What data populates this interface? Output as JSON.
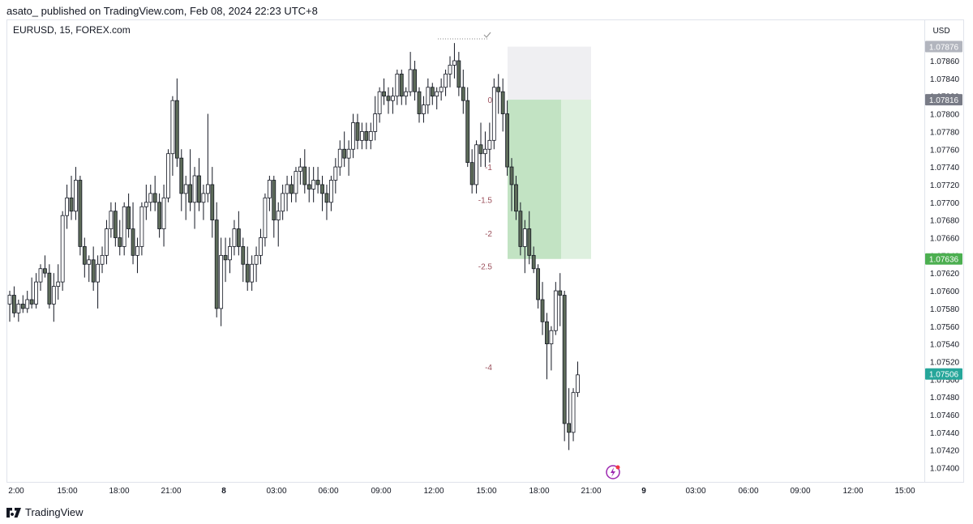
{
  "header": {
    "publish_line": "asato_ published on TradingView.com, Feb 08, 2024 22:23 UTC+8",
    "symbol": "EURUSD, 15, FOREX.com"
  },
  "footer": {
    "brand": "TradingView"
  },
  "chart_data": {
    "type": "candlestick",
    "currency": "USD",
    "ylim": [
      1.0739,
      1.0789
    ],
    "y_ticks": [
      "1.07860",
      "1.07840",
      "1.07820",
      "1.07800",
      "1.07780",
      "1.07760",
      "1.07740",
      "1.07720",
      "1.07700",
      "1.07680",
      "1.07660",
      "1.07640",
      "1.07620",
      "1.07600",
      "1.07580",
      "1.07560",
      "1.07540",
      "1.07520",
      "1.07500",
      "1.07480",
      "1.07460",
      "1.07440",
      "1.07420",
      "1.07400"
    ],
    "x_ticks": [
      "2:00",
      "15:00",
      "18:00",
      "21:00",
      "8",
      "03:00",
      "06:00",
      "09:00",
      "12:00",
      "15:00",
      "18:00",
      "21:00",
      "9",
      "03:00",
      "06:00",
      "09:00",
      "12:00",
      "15:00"
    ],
    "bold_x_ticks": [
      "8",
      "9"
    ],
    "price_badges": [
      {
        "label": "1.07876",
        "value": 1.07876,
        "color": "#b2b5be"
      },
      {
        "label": "1.07816",
        "value": 1.07816,
        "color": "#787b86"
      },
      {
        "label": "1.07636",
        "value": 1.07636,
        "color": "#4caf50"
      },
      {
        "label": "1.07506",
        "value": 1.07506,
        "color": "#26a69a"
      }
    ],
    "level_labels": [
      {
        "label": "0",
        "value": 1.07816
      },
      {
        "label": "-1",
        "value": 1.0774
      },
      {
        "label": "-1.5",
        "value": 1.07703
      },
      {
        "label": "-2",
        "value": 1.07665
      },
      {
        "label": "-2.5",
        "value": 1.07628
      },
      {
        "label": "-4",
        "value": 1.07514
      }
    ],
    "position_box": {
      "entry": 1.07816,
      "stop": 1.07876,
      "target": 1.07636,
      "stop_color": "#e5e5ea",
      "target_color": "#c8e6c9",
      "filled_color": "#a5d6a7"
    },
    "candle_colors": {
      "up": "#ffffff",
      "down": "#5d6b59",
      "border": "#131722"
    },
    "candles": [
      {
        "o": 1.07585,
        "h": 1.076,
        "l": 1.07565,
        "c": 1.07595
      },
      {
        "o": 1.07595,
        "h": 1.07605,
        "l": 1.0757,
        "c": 1.07575
      },
      {
        "o": 1.07575,
        "h": 1.0759,
        "l": 1.07565,
        "c": 1.07585
      },
      {
        "o": 1.07585,
        "h": 1.07595,
        "l": 1.07575,
        "c": 1.0758
      },
      {
        "o": 1.0758,
        "h": 1.076,
        "l": 1.07575,
        "c": 1.0759
      },
      {
        "o": 1.0759,
        "h": 1.07615,
        "l": 1.0758,
        "c": 1.07585
      },
      {
        "o": 1.07585,
        "h": 1.0762,
        "l": 1.0758,
        "c": 1.0761
      },
      {
        "o": 1.0761,
        "h": 1.0763,
        "l": 1.076,
        "c": 1.07625
      },
      {
        "o": 1.07625,
        "h": 1.0764,
        "l": 1.07615,
        "c": 1.0762
      },
      {
        "o": 1.0762,
        "h": 1.0763,
        "l": 1.0758,
        "c": 1.07585
      },
      {
        "o": 1.07585,
        "h": 1.0762,
        "l": 1.07565,
        "c": 1.07605
      },
      {
        "o": 1.07605,
        "h": 1.0763,
        "l": 1.0759,
        "c": 1.0761
      },
      {
        "o": 1.0761,
        "h": 1.0769,
        "l": 1.076,
        "c": 1.07685
      },
      {
        "o": 1.07685,
        "h": 1.0772,
        "l": 1.0767,
        "c": 1.07705
      },
      {
        "o": 1.07705,
        "h": 1.0773,
        "l": 1.0768,
        "c": 1.0769
      },
      {
        "o": 1.0769,
        "h": 1.0774,
        "l": 1.0768,
        "c": 1.07725
      },
      {
        "o": 1.07725,
        "h": 1.0773,
        "l": 1.0764,
        "c": 1.0765
      },
      {
        "o": 1.0765,
        "h": 1.0766,
        "l": 1.07615,
        "c": 1.0763
      },
      {
        "o": 1.0763,
        "h": 1.0764,
        "l": 1.0761,
        "c": 1.07635
      },
      {
        "o": 1.07635,
        "h": 1.0765,
        "l": 1.076,
        "c": 1.0761
      },
      {
        "o": 1.0761,
        "h": 1.0764,
        "l": 1.0758,
        "c": 1.0763
      },
      {
        "o": 1.0763,
        "h": 1.0765,
        "l": 1.0762,
        "c": 1.0764
      },
      {
        "o": 1.0764,
        "h": 1.0768,
        "l": 1.0763,
        "c": 1.0767
      },
      {
        "o": 1.0767,
        "h": 1.077,
        "l": 1.0766,
        "c": 1.0769
      },
      {
        "o": 1.0769,
        "h": 1.077,
        "l": 1.0765,
        "c": 1.0766
      },
      {
        "o": 1.0766,
        "h": 1.0768,
        "l": 1.0764,
        "c": 1.0765
      },
      {
        "o": 1.0765,
        "h": 1.077,
        "l": 1.0764,
        "c": 1.07695
      },
      {
        "o": 1.07695,
        "h": 1.0771,
        "l": 1.0766,
        "c": 1.0767
      },
      {
        "o": 1.0767,
        "h": 1.077,
        "l": 1.0763,
        "c": 1.0764
      },
      {
        "o": 1.0764,
        "h": 1.0766,
        "l": 1.0762,
        "c": 1.0765
      },
      {
        "o": 1.0765,
        "h": 1.077,
        "l": 1.0764,
        "c": 1.07695
      },
      {
        "o": 1.07695,
        "h": 1.0772,
        "l": 1.0768,
        "c": 1.077
      },
      {
        "o": 1.077,
        "h": 1.0772,
        "l": 1.0769,
        "c": 1.0771
      },
      {
        "o": 1.0771,
        "h": 1.0773,
        "l": 1.0769,
        "c": 1.077
      },
      {
        "o": 1.077,
        "h": 1.0771,
        "l": 1.0766,
        "c": 1.0767
      },
      {
        "o": 1.0767,
        "h": 1.0772,
        "l": 1.0765,
        "c": 1.07705
      },
      {
        "o": 1.07705,
        "h": 1.0776,
        "l": 1.077,
        "c": 1.07755
      },
      {
        "o": 1.07755,
        "h": 1.0782,
        "l": 1.0773,
        "c": 1.07815
      },
      {
        "o": 1.07815,
        "h": 1.0784,
        "l": 1.0774,
        "c": 1.0775
      },
      {
        "o": 1.0775,
        "h": 1.0776,
        "l": 1.0769,
        "c": 1.0771
      },
      {
        "o": 1.0771,
        "h": 1.0773,
        "l": 1.0768,
        "c": 1.0772
      },
      {
        "o": 1.0772,
        "h": 1.0776,
        "l": 1.0769,
        "c": 1.077
      },
      {
        "o": 1.077,
        "h": 1.0774,
        "l": 1.0767,
        "c": 1.0773
      },
      {
        "o": 1.0773,
        "h": 1.0775,
        "l": 1.0769,
        "c": 1.077
      },
      {
        "o": 1.077,
        "h": 1.0772,
        "l": 1.0768,
        "c": 1.0771
      },
      {
        "o": 1.0771,
        "h": 1.078,
        "l": 1.077,
        "c": 1.0772
      },
      {
        "o": 1.0772,
        "h": 1.0774,
        "l": 1.0766,
        "c": 1.0768
      },
      {
        "o": 1.0768,
        "h": 1.077,
        "l": 1.0757,
        "c": 1.0758
      },
      {
        "o": 1.0758,
        "h": 1.0766,
        "l": 1.0756,
        "c": 1.0764
      },
      {
        "o": 1.0764,
        "h": 1.0766,
        "l": 1.0761,
        "c": 1.07635
      },
      {
        "o": 1.07635,
        "h": 1.0766,
        "l": 1.0762,
        "c": 1.0765
      },
      {
        "o": 1.0765,
        "h": 1.0768,
        "l": 1.0764,
        "c": 1.0767
      },
      {
        "o": 1.0767,
        "h": 1.0769,
        "l": 1.0764,
        "c": 1.0765
      },
      {
        "o": 1.0765,
        "h": 1.0766,
        "l": 1.0761,
        "c": 1.0763
      },
      {
        "o": 1.0763,
        "h": 1.0765,
        "l": 1.076,
        "c": 1.0761
      },
      {
        "o": 1.0761,
        "h": 1.0764,
        "l": 1.076,
        "c": 1.0763
      },
      {
        "o": 1.0763,
        "h": 1.0765,
        "l": 1.0761,
        "c": 1.0764
      },
      {
        "o": 1.0764,
        "h": 1.0767,
        "l": 1.0763,
        "c": 1.0766
      },
      {
        "o": 1.0766,
        "h": 1.0771,
        "l": 1.0765,
        "c": 1.07705
      },
      {
        "o": 1.07705,
        "h": 1.0773,
        "l": 1.0769,
        "c": 1.07725
      },
      {
        "o": 1.07725,
        "h": 1.0773,
        "l": 1.0766,
        "c": 1.0768
      },
      {
        "o": 1.0768,
        "h": 1.077,
        "l": 1.0765,
        "c": 1.0769
      },
      {
        "o": 1.0769,
        "h": 1.0772,
        "l": 1.0768,
        "c": 1.0771
      },
      {
        "o": 1.0771,
        "h": 1.0773,
        "l": 1.0769,
        "c": 1.0772
      },
      {
        "o": 1.0772,
        "h": 1.0773,
        "l": 1.077,
        "c": 1.0771
      },
      {
        "o": 1.0771,
        "h": 1.0774,
        "l": 1.077,
        "c": 1.07735
      },
      {
        "o": 1.07735,
        "h": 1.0775,
        "l": 1.0772,
        "c": 1.0774
      },
      {
        "o": 1.0774,
        "h": 1.0776,
        "l": 1.0771,
        "c": 1.0772
      },
      {
        "o": 1.0772,
        "h": 1.0774,
        "l": 1.077,
        "c": 1.07715
      },
      {
        "o": 1.07715,
        "h": 1.0774,
        "l": 1.077,
        "c": 1.07725
      },
      {
        "o": 1.07725,
        "h": 1.0774,
        "l": 1.0771,
        "c": 1.0772
      },
      {
        "o": 1.0772,
        "h": 1.0773,
        "l": 1.0769,
        "c": 1.0771
      },
      {
        "o": 1.0771,
        "h": 1.0772,
        "l": 1.0768,
        "c": 1.077
      },
      {
        "o": 1.077,
        "h": 1.0773,
        "l": 1.0769,
        "c": 1.07725
      },
      {
        "o": 1.07725,
        "h": 1.0775,
        "l": 1.0771,
        "c": 1.0774
      },
      {
        "o": 1.0774,
        "h": 1.0777,
        "l": 1.0773,
        "c": 1.0776
      },
      {
        "o": 1.0776,
        "h": 1.0778,
        "l": 1.0774,
        "c": 1.0775
      },
      {
        "o": 1.0775,
        "h": 1.0777,
        "l": 1.0773,
        "c": 1.0776
      },
      {
        "o": 1.0776,
        "h": 1.078,
        "l": 1.0775,
        "c": 1.0779
      },
      {
        "o": 1.0779,
        "h": 1.078,
        "l": 1.0776,
        "c": 1.0777
      },
      {
        "o": 1.0777,
        "h": 1.0779,
        "l": 1.0776,
        "c": 1.0778
      },
      {
        "o": 1.0778,
        "h": 1.0779,
        "l": 1.0776,
        "c": 1.0777
      },
      {
        "o": 1.0777,
        "h": 1.0779,
        "l": 1.0776,
        "c": 1.0778
      },
      {
        "o": 1.0778,
        "h": 1.0782,
        "l": 1.0777,
        "c": 1.078
      },
      {
        "o": 1.078,
        "h": 1.0783,
        "l": 1.0779,
        "c": 1.07825
      },
      {
        "o": 1.07825,
        "h": 1.0784,
        "l": 1.0781,
        "c": 1.0782
      },
      {
        "o": 1.0782,
        "h": 1.0783,
        "l": 1.078,
        "c": 1.07815
      },
      {
        "o": 1.07815,
        "h": 1.0783,
        "l": 1.078,
        "c": 1.0782
      },
      {
        "o": 1.0782,
        "h": 1.0785,
        "l": 1.0781,
        "c": 1.07845
      },
      {
        "o": 1.07845,
        "h": 1.0785,
        "l": 1.0781,
        "c": 1.0782
      },
      {
        "o": 1.0782,
        "h": 1.0783,
        "l": 1.0781,
        "c": 1.07825
      },
      {
        "o": 1.07825,
        "h": 1.0787,
        "l": 1.0782,
        "c": 1.0785
      },
      {
        "o": 1.0785,
        "h": 1.0786,
        "l": 1.07815,
        "c": 1.07825
      },
      {
        "o": 1.07825,
        "h": 1.0783,
        "l": 1.0779,
        "c": 1.078
      },
      {
        "o": 1.078,
        "h": 1.0782,
        "l": 1.0779,
        "c": 1.0781
      },
      {
        "o": 1.0781,
        "h": 1.0784,
        "l": 1.078,
        "c": 1.0783
      },
      {
        "o": 1.0783,
        "h": 1.07835,
        "l": 1.0781,
        "c": 1.0782
      },
      {
        "o": 1.0782,
        "h": 1.0783,
        "l": 1.07805,
        "c": 1.07825
      },
      {
        "o": 1.07825,
        "h": 1.0784,
        "l": 1.07815,
        "c": 1.0783
      },
      {
        "o": 1.0783,
        "h": 1.0785,
        "l": 1.0782,
        "c": 1.07845
      },
      {
        "o": 1.07845,
        "h": 1.07865,
        "l": 1.0783,
        "c": 1.07855
      },
      {
        "o": 1.07855,
        "h": 1.0788,
        "l": 1.0784,
        "c": 1.0786
      },
      {
        "o": 1.0786,
        "h": 1.0787,
        "l": 1.0782,
        "c": 1.0783
      },
      {
        "o": 1.0783,
        "h": 1.0785,
        "l": 1.078,
        "c": 1.07815
      },
      {
        "o": 1.07815,
        "h": 1.0783,
        "l": 1.0774,
        "c": 1.07745
      },
      {
        "o": 1.07745,
        "h": 1.0776,
        "l": 1.0771,
        "c": 1.0772
      },
      {
        "o": 1.0772,
        "h": 1.0777,
        "l": 1.0771,
        "c": 1.07765
      },
      {
        "o": 1.07765,
        "h": 1.0779,
        "l": 1.0774,
        "c": 1.07755
      },
      {
        "o": 1.07755,
        "h": 1.0778,
        "l": 1.0774,
        "c": 1.0776
      },
      {
        "o": 1.0776,
        "h": 1.0779,
        "l": 1.07745,
        "c": 1.0777
      },
      {
        "o": 1.0777,
        "h": 1.0784,
        "l": 1.0776,
        "c": 1.0783
      },
      {
        "o": 1.0783,
        "h": 1.07845,
        "l": 1.078,
        "c": 1.07825
      },
      {
        "o": 1.07825,
        "h": 1.0784,
        "l": 1.0778,
        "c": 1.078
      },
      {
        "o": 1.078,
        "h": 1.07815,
        "l": 1.0773,
        "c": 1.0774
      },
      {
        "o": 1.0774,
        "h": 1.0775,
        "l": 1.0769,
        "c": 1.0772
      },
      {
        "o": 1.0772,
        "h": 1.0773,
        "l": 1.0768,
        "c": 1.0769
      },
      {
        "o": 1.0769,
        "h": 1.077,
        "l": 1.0764,
        "c": 1.0765
      },
      {
        "o": 1.0765,
        "h": 1.0768,
        "l": 1.0762,
        "c": 1.0767
      },
      {
        "o": 1.0767,
        "h": 1.0769,
        "l": 1.0763,
        "c": 1.0764
      },
      {
        "o": 1.0764,
        "h": 1.0765,
        "l": 1.0762,
        "c": 1.07625
      },
      {
        "o": 1.07625,
        "h": 1.0763,
        "l": 1.0758,
        "c": 1.0759
      },
      {
        "o": 1.0759,
        "h": 1.0761,
        "l": 1.0755,
        "c": 1.07565
      },
      {
        "o": 1.07565,
        "h": 1.07575,
        "l": 1.075,
        "c": 1.0754
      },
      {
        "o": 1.0754,
        "h": 1.0756,
        "l": 1.0751,
        "c": 1.07555
      },
      {
        "o": 1.07555,
        "h": 1.0761,
        "l": 1.0755,
        "c": 1.076
      },
      {
        "o": 1.076,
        "h": 1.0762,
        "l": 1.0756,
        "c": 1.07595
      },
      {
        "o": 1.07595,
        "h": 1.076,
        "l": 1.0743,
        "c": 1.0745
      },
      {
        "o": 1.0745,
        "h": 1.0749,
        "l": 1.0742,
        "c": 1.0744
      },
      {
        "o": 1.0744,
        "h": 1.0749,
        "l": 1.0743,
        "c": 1.07485
      },
      {
        "o": 1.07485,
        "h": 1.0752,
        "l": 1.0748,
        "c": 1.07505
      }
    ]
  }
}
